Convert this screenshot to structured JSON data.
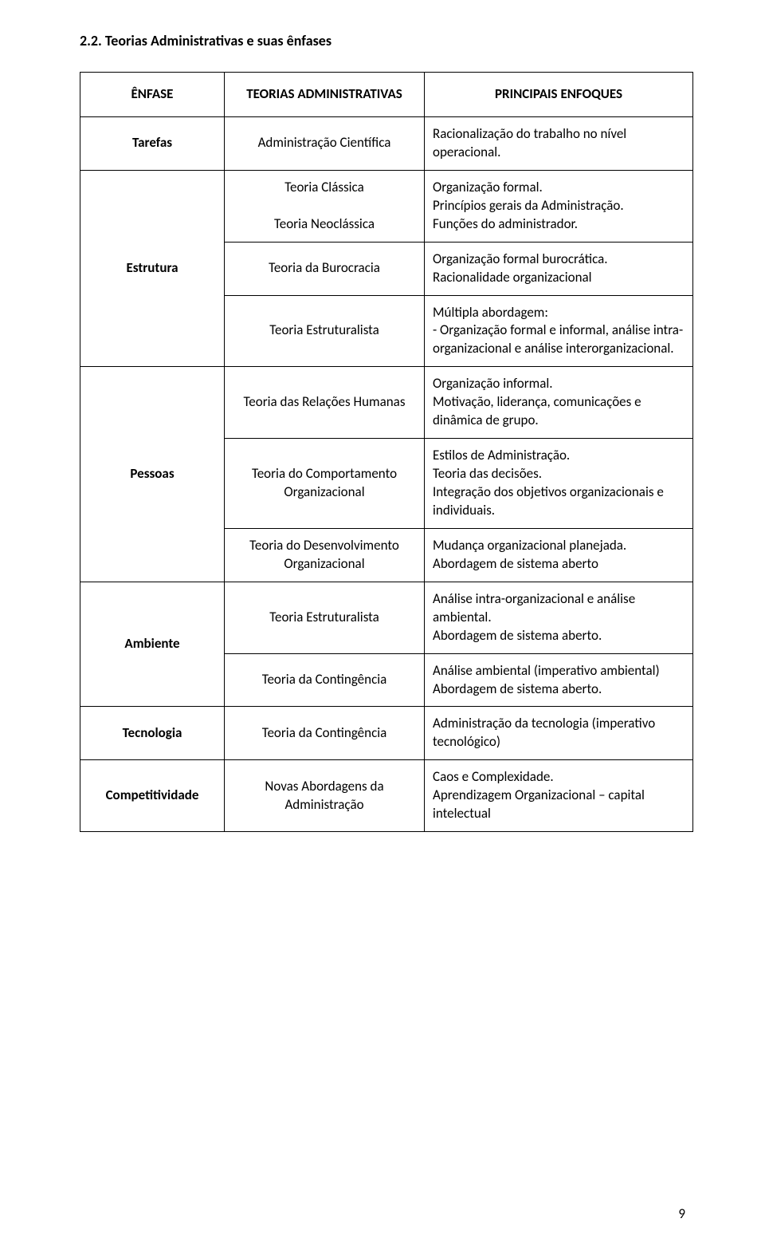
{
  "section_title": "2.2. Teorias Administrativas e suas ênfases",
  "headers": {
    "col1": "ÊNFASE",
    "col2": "TEORIAS ADMINISTRATIVAS",
    "col3": "PRINCIPAIS ENFOQUES"
  },
  "rows": [
    {
      "emphasis": "Tarefas",
      "rowspan": 1,
      "items": [
        {
          "theory": "Administração Científica",
          "focus": "Racionalização do trabalho no nível operacional."
        }
      ]
    },
    {
      "emphasis": "Estrutura",
      "rowspan": 3,
      "items": [
        {
          "theory": "Teoria Clássica\nTeoria Neoclássica",
          "focus": "Organização formal.\nPrincípios gerais da Administração.\nFunções do administrador."
        },
        {
          "theory": "Teoria da Burocracia",
          "focus": "Organização formal burocrática.\nRacionalidade organizacional"
        },
        {
          "theory": "Teoria Estruturalista",
          "focus": "Múltipla abordagem:\n-  Organização formal e informal, análise intra-organizacional e análise interorganizacional."
        }
      ]
    },
    {
      "emphasis": "Pessoas",
      "rowspan": 3,
      "items": [
        {
          "theory": "Teoria das Relações Humanas",
          "focus": "Organização informal.\nMotivação, liderança, comunicações e dinâmica de grupo."
        },
        {
          "theory": "Teoria do Comportamento Organizacional",
          "focus": "Estilos de Administração.\nTeoria das decisões.\nIntegração dos objetivos organizacionais e individuais."
        },
        {
          "theory": "Teoria do Desenvolvimento Organizacional",
          "focus": "Mudança organizacional planejada.\nAbordagem de sistema aberto"
        }
      ]
    },
    {
      "emphasis": "Ambiente",
      "rowspan": 2,
      "items": [
        {
          "theory": "Teoria Estruturalista",
          "focus": "Análise intra-organizacional e análise ambiental.\nAbordagem de sistema aberto."
        },
        {
          "theory": "Teoria da Contingência",
          "focus": "Análise ambiental (imperativo ambiental)\nAbordagem de sistema aberto."
        }
      ]
    },
    {
      "emphasis": "Tecnologia",
      "rowspan": 1,
      "items": [
        {
          "theory": "Teoria da Contingência",
          "focus": "Administração da tecnologia (imperativo tecnológico)"
        }
      ]
    },
    {
      "emphasis": "Competitividade",
      "rowspan": 1,
      "items": [
        {
          "theory": "Novas Abordagens da Administração",
          "focus": "Caos e Complexidade.\nAprendizagem Organizacional – capital intelectual"
        }
      ]
    }
  ],
  "page_number": "9"
}
